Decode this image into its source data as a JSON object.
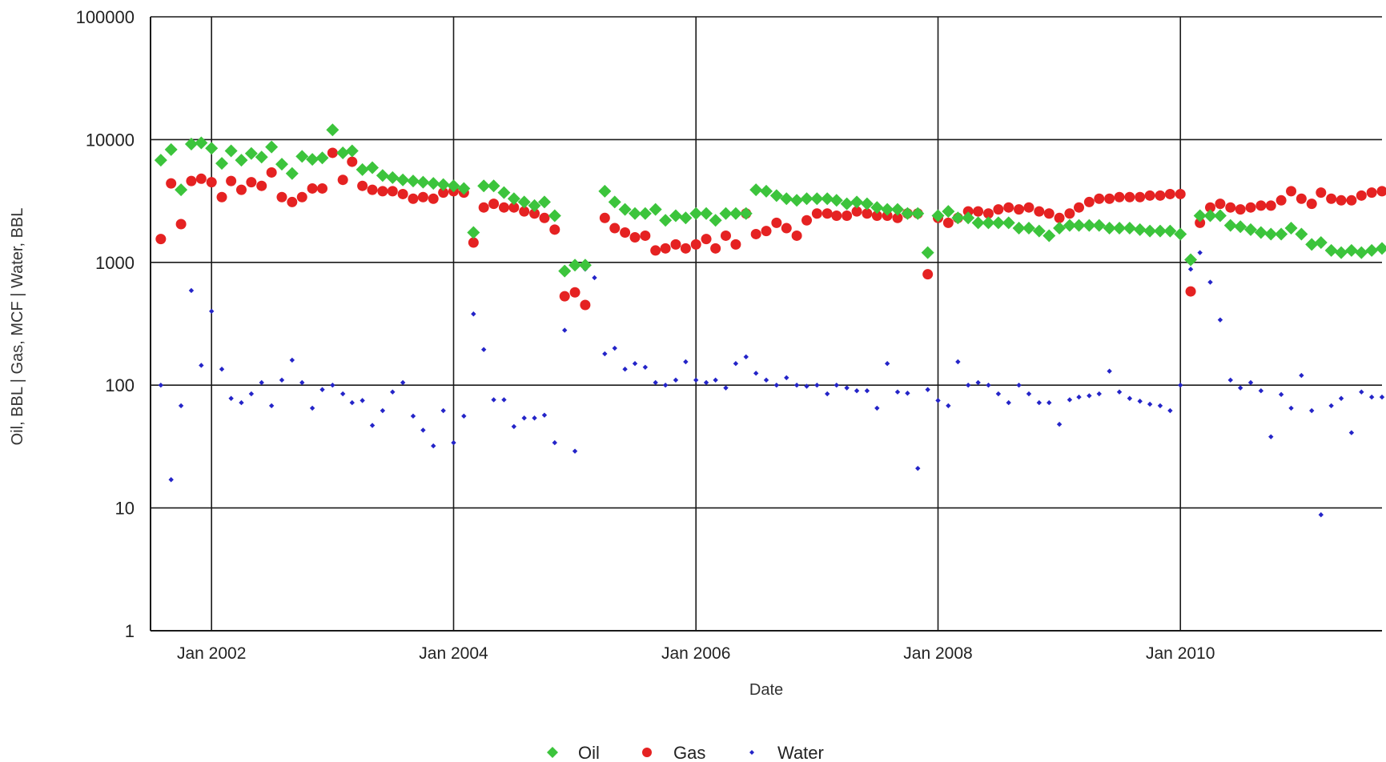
{
  "chart_data": {
    "type": "scatter",
    "title": "",
    "xlabel": "Date",
    "ylabel": "Oil, BBL | Gas, MCF | Water, BBL",
    "yscale": "log",
    "ylim": [
      1,
      100000
    ],
    "yticks": [
      {
        "value": 1,
        "label": "1"
      },
      {
        "value": 10,
        "label": "10"
      },
      {
        "value": 100,
        "label": "100"
      },
      {
        "value": 1000,
        "label": "1000"
      },
      {
        "value": 10000,
        "label": "10000"
      },
      {
        "value": 100000,
        "label": "100000"
      }
    ],
    "xlim": [
      "2001-07-01",
      "2011-09-01"
    ],
    "xticks": [
      {
        "value": "2002-01-01",
        "label": "Jan 2002"
      },
      {
        "value": "2004-01-01",
        "label": "Jan 2004"
      },
      {
        "value": "2006-01-01",
        "label": "Jan 2006"
      },
      {
        "value": "2008-01-01",
        "label": "Jan 2008"
      },
      {
        "value": "2010-01-01",
        "label": "Jan 2010"
      }
    ],
    "grid": true,
    "legend": "bottom-center",
    "months": [
      "2001-08",
      "2001-09",
      "2001-10",
      "2001-11",
      "2001-12",
      "2002-01",
      "2002-02",
      "2002-03",
      "2002-04",
      "2002-05",
      "2002-06",
      "2002-07",
      "2002-08",
      "2002-09",
      "2002-10",
      "2002-11",
      "2002-12",
      "2003-01",
      "2003-02",
      "2003-03",
      "2003-04",
      "2003-05",
      "2003-06",
      "2003-07",
      "2003-08",
      "2003-09",
      "2003-10",
      "2003-11",
      "2003-12",
      "2004-01",
      "2004-02",
      "2004-03",
      "2004-04",
      "2004-05",
      "2004-06",
      "2004-07",
      "2004-08",
      "2004-09",
      "2004-10",
      "2004-11",
      "2004-12",
      "2005-01",
      "2005-02",
      "2005-03",
      "2005-04",
      "2005-05",
      "2005-06",
      "2005-07",
      "2005-08",
      "2005-09",
      "2005-10",
      "2005-11",
      "2005-12",
      "2006-01",
      "2006-02",
      "2006-03",
      "2006-04",
      "2006-05",
      "2006-06",
      "2006-07",
      "2006-08",
      "2006-09",
      "2006-10",
      "2006-11",
      "2006-12",
      "2007-01",
      "2007-02",
      "2007-03",
      "2007-04",
      "2007-05",
      "2007-06",
      "2007-07",
      "2007-08",
      "2007-09",
      "2007-10",
      "2007-11",
      "2007-12",
      "2008-01",
      "2008-02",
      "2008-03",
      "2008-04",
      "2008-05",
      "2008-06",
      "2008-07",
      "2008-08",
      "2008-09",
      "2008-10",
      "2008-11",
      "2008-12",
      "2009-01",
      "2009-02",
      "2009-03",
      "2009-04",
      "2009-05",
      "2009-06",
      "2009-07",
      "2009-08",
      "2009-09",
      "2009-10",
      "2009-11",
      "2009-12",
      "2010-01",
      "2010-02",
      "2010-03",
      "2010-04",
      "2010-05",
      "2010-06",
      "2010-07",
      "2010-08",
      "2010-09",
      "2010-10",
      "2010-11",
      "2010-12",
      "2011-01",
      "2011-02",
      "2011-03",
      "2011-04",
      "2011-05",
      "2011-06",
      "2011-07",
      "2011-08",
      "2011-09"
    ],
    "series": [
      {
        "name": "Oil",
        "color": "#3cc43c",
        "marker": "diamond",
        "values": [
          6800,
          8300,
          3900,
          9200,
          9400,
          8500,
          6400,
          8100,
          6800,
          7700,
          7200,
          8700,
          6300,
          5300,
          7300,
          6900,
          7100,
          12000,
          7800,
          8100,
          5700,
          5900,
          5100,
          4900,
          4700,
          4600,
          4500,
          4400,
          4300,
          4200,
          4000,
          1750,
          4200,
          4200,
          3700,
          3300,
          3100,
          2900,
          3100,
          2400,
          850,
          950,
          950,
          null,
          3800,
          3100,
          2700,
          2500,
          2500,
          2700,
          2200,
          2400,
          2300,
          2500,
          2500,
          2200,
          2500,
          2500,
          2500,
          3900,
          3800,
          3500,
          3300,
          3200,
          3300,
          3300,
          3300,
          3200,
          3000,
          3100,
          3000,
          2800,
          2700,
          2700,
          2500,
          2500,
          1200,
          2400,
          2600,
          2300,
          2300,
          2100,
          2100,
          2100,
          2100,
          1900,
          1900,
          1800,
          1650,
          1900,
          2000,
          2000,
          2000,
          2000,
          1900,
          1900,
          1900,
          1850,
          1800,
          1800,
          1800,
          1700,
          1050,
          2400,
          2400,
          2400,
          2000,
          1950,
          1850,
          1750,
          1700,
          1700,
          1900,
          1700,
          1400,
          1450,
          1250,
          1200,
          1250,
          1200,
          1250,
          1300
        ]
      },
      {
        "name": "Gas",
        "color": "#e52222",
        "marker": "circle",
        "values": [
          1550,
          4400,
          2050,
          4600,
          4800,
          4500,
          3400,
          4600,
          3900,
          4500,
          4200,
          5400,
          3400,
          3100,
          3400,
          4000,
          4000,
          7800,
          4700,
          6600,
          4200,
          3900,
          3800,
          3800,
          3600,
          3300,
          3400,
          3300,
          3700,
          3800,
          3700,
          1450,
          2800,
          3000,
          2800,
          2800,
          2600,
          2500,
          2300,
          1850,
          530,
          570,
          450,
          null,
          2300,
          1900,
          1750,
          1600,
          1650,
          1250,
          1300,
          1400,
          1300,
          1400,
          1550,
          1300,
          1650,
          1400,
          2500,
          1700,
          1800,
          2100,
          1900,
          1650,
          2200,
          2500,
          2500,
          2400,
          2400,
          2600,
          2500,
          2400,
          2400,
          2300,
          2500,
          2500,
          800,
          2300,
          2100,
          2300,
          2600,
          2600,
          2500,
          2700,
          2800,
          2700,
          2800,
          2600,
          2500,
          2300,
          2500,
          2800,
          3100,
          3300,
          3300,
          3400,
          3400,
          3400,
          3500,
          3500,
          3600,
          3600,
          580,
          2100,
          2800,
          3000,
          2800,
          2700,
          2800,
          2900,
          2900,
          3200,
          3800,
          3300,
          3000,
          3700,
          3300,
          3200,
          3200,
          3500,
          3700,
          3800
        ]
      },
      {
        "name": "Water",
        "color": "#2424c8",
        "marker": "small-diamond",
        "values": [
          100,
          17,
          68,
          590,
          145,
          400,
          135,
          78,
          72,
          85,
          105,
          68,
          110,
          160,
          105,
          65,
          92,
          100,
          85,
          72,
          75,
          47,
          62,
          88,
          105,
          56,
          43,
          32,
          62,
          34,
          56,
          380,
          195,
          76,
          76,
          46,
          54,
          54,
          57,
          34,
          280,
          29,
          880,
          750,
          180,
          200,
          135,
          150,
          140,
          105,
          100,
          110,
          155,
          110,
          105,
          110,
          95,
          150,
          170,
          125,
          110,
          100,
          115,
          100,
          98,
          100,
          85,
          100,
          95,
          90,
          90,
          65,
          150,
          88,
          86,
          21,
          92,
          75,
          68,
          155,
          100,
          105,
          100,
          85,
          72,
          100,
          85,
          72,
          72,
          48,
          76,
          80,
          82,
          85,
          130,
          88,
          78,
          74,
          70,
          68,
          62,
          100,
          880,
          1200,
          690,
          340,
          110,
          95,
          105,
          90,
          38,
          84,
          65,
          120,
          62,
          8.8,
          68,
          78,
          41,
          88,
          80,
          80
        ]
      }
    ]
  }
}
